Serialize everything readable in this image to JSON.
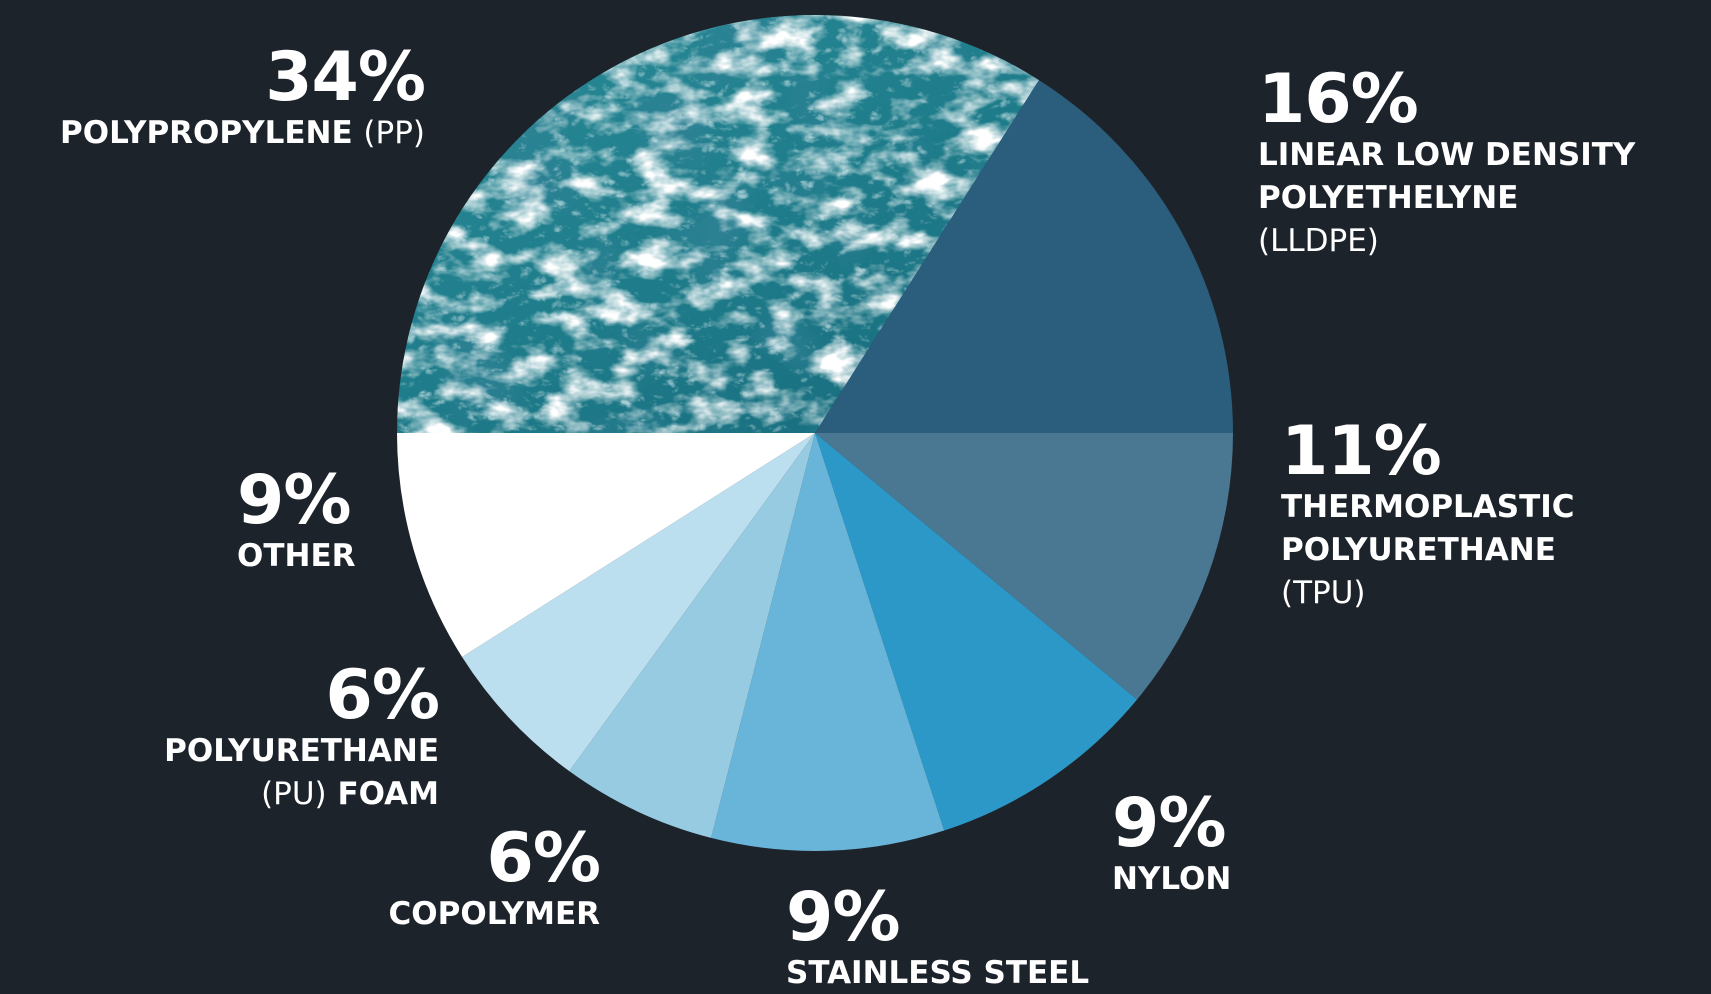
{
  "colors": {
    "background": "#1d232b",
    "label_text": "#ffffff"
  },
  "chart_data": {
    "type": "pie",
    "title": "",
    "slices": [
      {
        "pct_label": "34%",
        "name": "POLYPROPYLENE",
        "abbr": "(PP)",
        "value": 34,
        "fill": "ocean-water-photo"
      },
      {
        "pct_label": "16%",
        "name_lines": [
          "LINEAR LOW DENSITY",
          "POLYETHELYNE"
        ],
        "abbr": "(LLDPE)",
        "value": 16,
        "color": "#2b5e7c"
      },
      {
        "pct_label": "11%",
        "name_lines": [
          "THERMOPLASTIC",
          "POLYURETHANE"
        ],
        "abbr": "(TPU)",
        "value": 11,
        "color": "#4a7893"
      },
      {
        "pct_label": "9%",
        "name": "NYLON",
        "value": 9,
        "color": "#2c98c8"
      },
      {
        "pct_label": "9%",
        "name": "STAINLESS STEEL",
        "value": 9,
        "color": "#69b5d9"
      },
      {
        "pct_label": "6%",
        "name": "COPOLYMER",
        "value": 6,
        "color": "#97cbe1"
      },
      {
        "pct_label": "6%",
        "name_line1": "POLYURETHANE",
        "abbr": "(PU)",
        "name_line2": "FOAM",
        "value": 6,
        "color": "#bcdfef"
      },
      {
        "pct_label": "9%",
        "name": "OTHER",
        "value": 9,
        "color": "#ffffff"
      }
    ]
  }
}
